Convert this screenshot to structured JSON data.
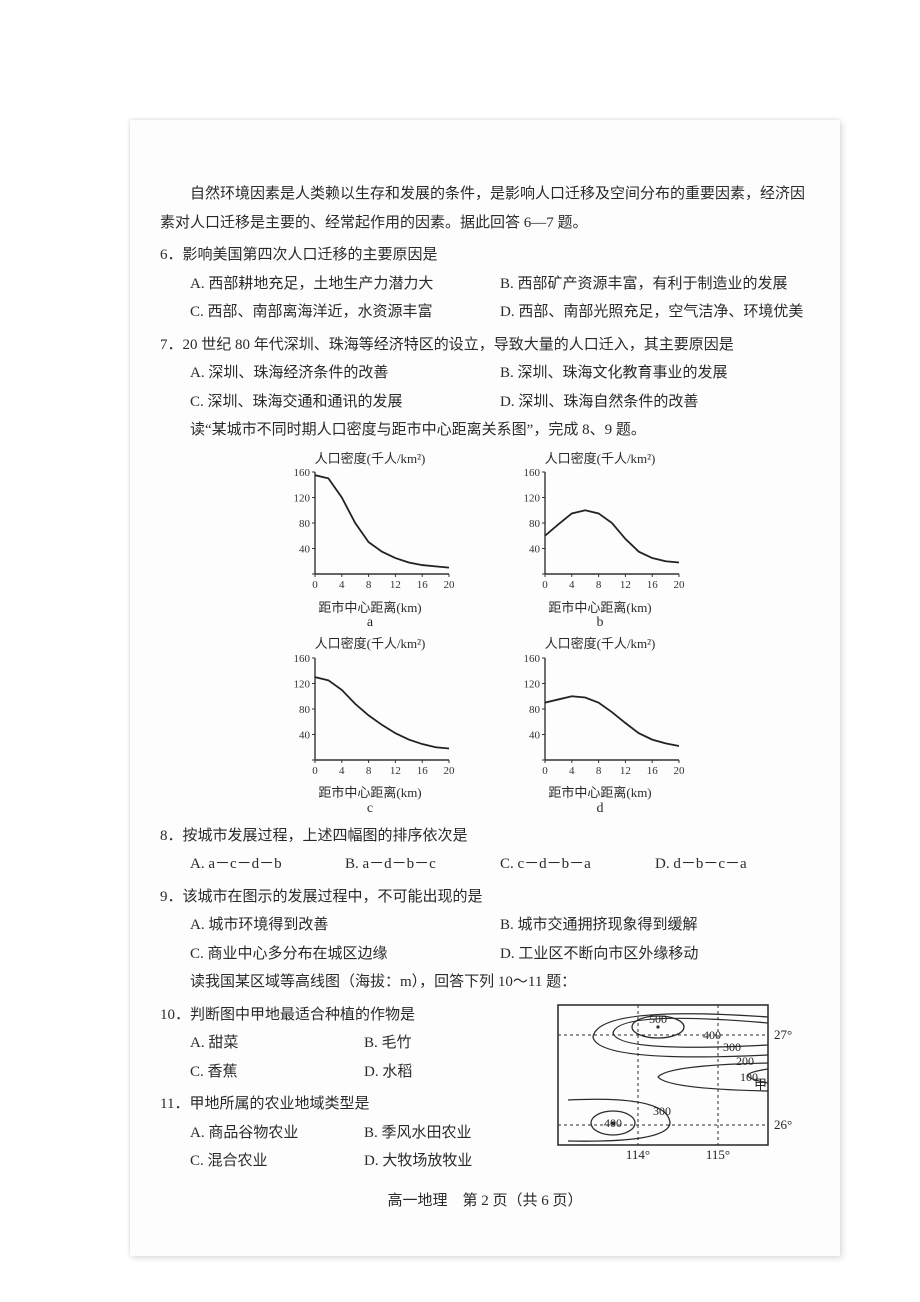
{
  "intro": "自然环境因素是人类赖以生存和发展的条件，是影响人口迁移及空间分布的重要因素，经济因素对人口迁移是主要的、经常起作用的因素。据此回答 6—7 题。",
  "q6": {
    "stem": "6．影响美国第四次人口迁移的主要原因是",
    "A": "A. 西部耕地充足，土地生产力潜力大",
    "B": "B. 西部矿产资源丰富，有利于制造业的发展",
    "C": "C. 西部、南部离海洋近，水资源丰富",
    "D": "D. 西部、南部光照充足，空气洁净、环境优美"
  },
  "q7": {
    "stem": "7．20 世纪 80 年代深圳、珠海等经济特区的设立，导致大量的人口迁入，其主要原因是",
    "A": "A. 深圳、珠海经济条件的改善",
    "B": "B. 深圳、珠海文化教育事业的发展",
    "C": "C. 深圳、珠海交通和通讯的发展",
    "D": "D. 深圳、珠海自然条件的改善"
  },
  "charts_intro": "读“某城市不同时期人口密度与距市中心距离关系图”，完成 8、9 题。",
  "chart_common": {
    "y_title": "人口密度(千人/km²)",
    "x_title": "距市中心距离(km)",
    "y_ticks": [
      0,
      40,
      80,
      120,
      160
    ],
    "x_ticks": [
      0,
      4,
      8,
      12,
      16,
      20
    ],
    "xlim": [
      0,
      20
    ],
    "ylim": [
      0,
      160
    ],
    "axis_color": "#333333",
    "line_color": "#222222",
    "bg": "#fdfdfd",
    "tick_fontsize": 11
  },
  "chart_a": {
    "label": "a",
    "points": [
      [
        0,
        155
      ],
      [
        2,
        150
      ],
      [
        4,
        120
      ],
      [
        6,
        80
      ],
      [
        8,
        50
      ],
      [
        10,
        35
      ],
      [
        12,
        25
      ],
      [
        14,
        18
      ],
      [
        16,
        14
      ],
      [
        18,
        12
      ],
      [
        20,
        10
      ]
    ]
  },
  "chart_b": {
    "label": "b",
    "points": [
      [
        0,
        60
      ],
      [
        2,
        78
      ],
      [
        4,
        95
      ],
      [
        6,
        100
      ],
      [
        8,
        95
      ],
      [
        10,
        80
      ],
      [
        12,
        55
      ],
      [
        14,
        35
      ],
      [
        16,
        25
      ],
      [
        18,
        20
      ],
      [
        20,
        18
      ]
    ]
  },
  "chart_c": {
    "label": "c",
    "points": [
      [
        0,
        130
      ],
      [
        2,
        125
      ],
      [
        4,
        110
      ],
      [
        6,
        88
      ],
      [
        8,
        70
      ],
      [
        10,
        55
      ],
      [
        12,
        42
      ],
      [
        14,
        32
      ],
      [
        16,
        25
      ],
      [
        18,
        20
      ],
      [
        20,
        18
      ]
    ]
  },
  "chart_d": {
    "label": "d",
    "points": [
      [
        0,
        90
      ],
      [
        2,
        95
      ],
      [
        4,
        100
      ],
      [
        6,
        98
      ],
      [
        8,
        90
      ],
      [
        10,
        75
      ],
      [
        12,
        58
      ],
      [
        14,
        42
      ],
      [
        16,
        32
      ],
      [
        18,
        26
      ],
      [
        20,
        22
      ]
    ]
  },
  "q8": {
    "stem": "8．按城市发展过程，上述四幅图的排序依次是",
    "A": "A. a－c－d－b",
    "B": "B. a－d－b－c",
    "C": "C. c－d－b－a",
    "D": "D. d－b－c－a"
  },
  "q9": {
    "stem": "9．该城市在图示的发展过程中，不可能出现的是",
    "A": "A. 城市环境得到改善",
    "B": "B. 城市交通拥挤现象得到缓解",
    "C": "C. 商业中心多分布在城区边缘",
    "D": "D. 工业区不断向市区外缘移动"
  },
  "contour_intro": "读我国某区域等高线图（海拔：m），回答下列 10～11 题：",
  "q10": {
    "stem": "10．判断图中甲地最适合种植的作物是",
    "A": "A. 甜菜",
    "B": "B. 毛竹",
    "C": "C. 香蕉",
    "D": "D. 水稻"
  },
  "q11": {
    "stem": "11．甲地所属的农业地域类型是",
    "A": "A. 商品谷物农业",
    "B": "B. 季风水田农业",
    "C": "C. 混合农业",
    "D": "D. 大牧场放牧业"
  },
  "contour_map": {
    "border_color": "#333333",
    "line_color": "#2b2b2b",
    "text_color": "#222222",
    "labels": {
      "c500": "500",
      "c400a": "400",
      "c300a": "300",
      "c200": "200",
      "c100": "100",
      "jia": "甲",
      "c400b": "400",
      "c300b": "300",
      "lat27": "27°",
      "lat26": "26°",
      "lon114": "114°",
      "lon115": "115°"
    }
  },
  "footer": "高一地理　第 2 页（共 6 页）"
}
